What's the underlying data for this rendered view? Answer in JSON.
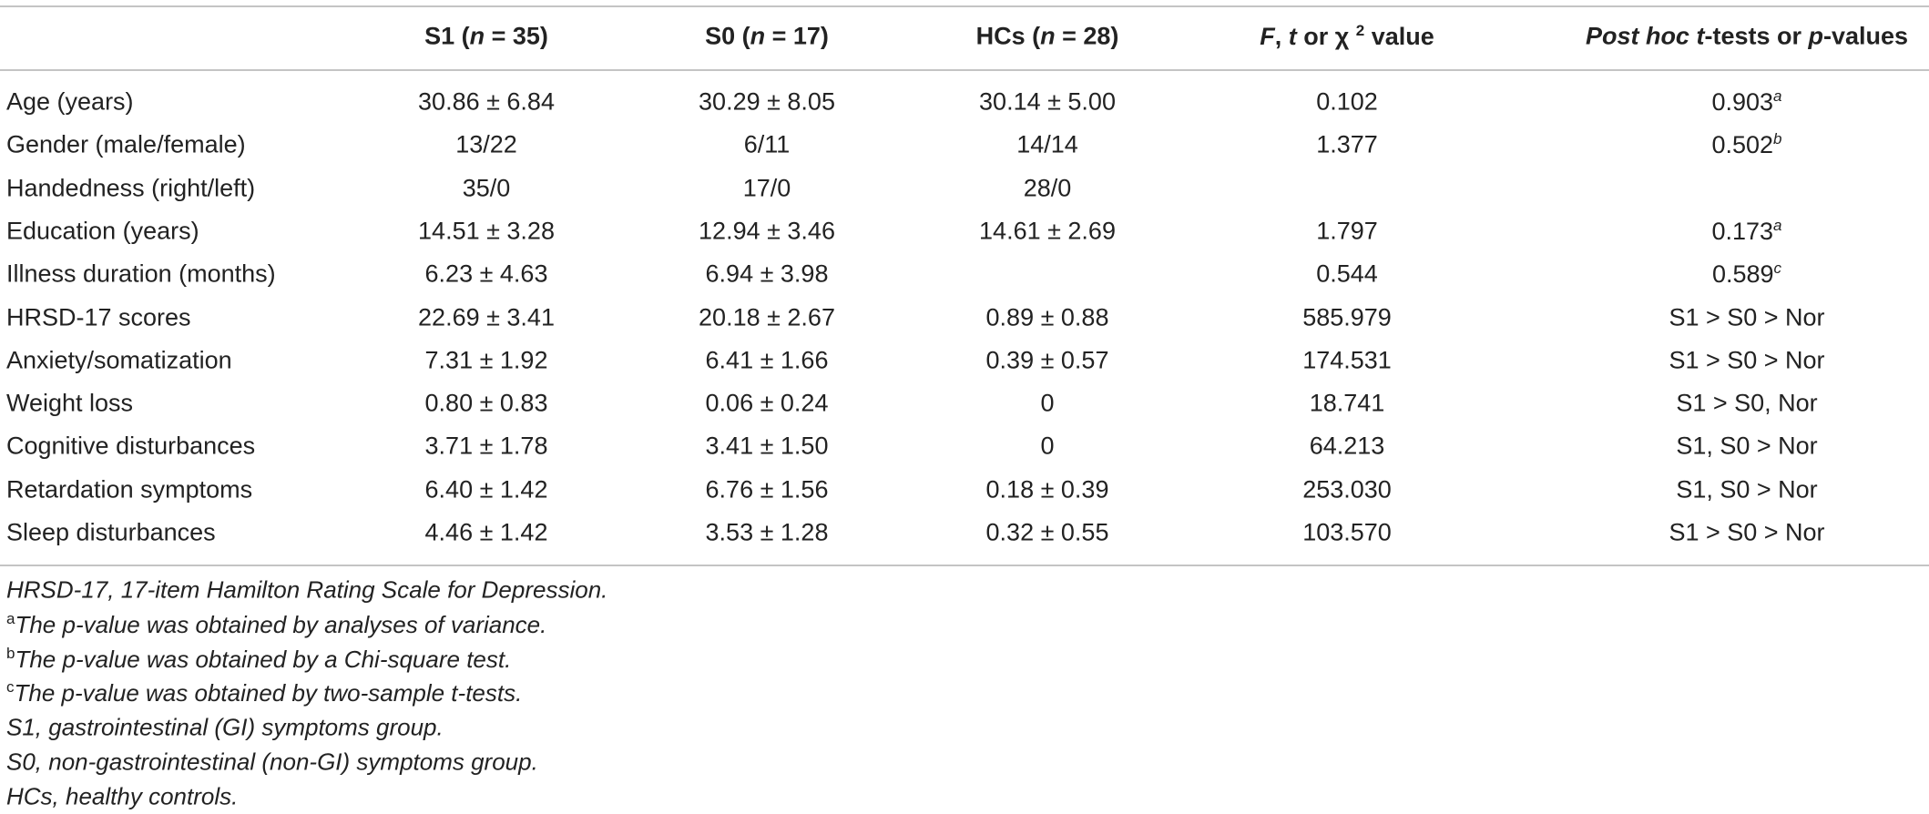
{
  "table": {
    "columns": [
      [
        "S1 (",
        "n",
        " = 35)"
      ],
      [
        "S0 (",
        "n",
        " = 17)"
      ],
      [
        "HCs (",
        "n",
        " = 28)"
      ],
      [
        "F",
        ", ",
        "t",
        " or χ ",
        "2",
        " value"
      ],
      [
        "Post hoc",
        " ",
        "t",
        "-tests or ",
        "p",
        "-values"
      ]
    ],
    "rows": [
      [
        "Age (years)",
        "30.86 ± 6.84",
        "30.29 ± 8.05",
        "30.14 ± 5.00",
        "0.102",
        {
          "text": "0.903",
          "mark": "a"
        }
      ],
      [
        "Gender (male/female)",
        "13/22",
        "6/11",
        "14/14",
        "1.377",
        {
          "text": "0.502",
          "mark": "b"
        }
      ],
      [
        "Handedness (right/left)",
        "35/0",
        "17/0",
        "28/0",
        null,
        null
      ],
      [
        "Education (years)",
        "14.51 ± 3.28",
        "12.94 ± 3.46",
        "14.61 ± 2.69",
        "1.797",
        {
          "text": "0.173",
          "mark": "a"
        }
      ],
      [
        "Illness duration (months)",
        "6.23 ± 4.63",
        "6.94 ± 3.98",
        null,
        "0.544",
        {
          "text": "0.589",
          "mark": "c"
        }
      ],
      [
        "HRSD-17 scores",
        "22.69 ± 3.41",
        "20.18 ± 2.67",
        "0.89 ± 0.88",
        "585.979",
        "S1 > S0 > Nor"
      ],
      [
        "Anxiety/somatization",
        "7.31 ± 1.92",
        "6.41 ± 1.66",
        "0.39 ± 0.57",
        "174.531",
        "S1 > S0 > Nor"
      ],
      [
        "Weight loss",
        "0.80 ± 0.83",
        "0.06 ± 0.24",
        "0",
        "18.741",
        "S1 > S0, Nor"
      ],
      [
        "Cognitive disturbances",
        "3.71 ± 1.78",
        "3.41 ± 1.50",
        "0",
        "64.213",
        "S1, S0 > Nor"
      ],
      [
        "Retardation symptoms",
        "6.40 ± 1.42",
        "6.76 ± 1.56",
        "0.18 ± 0.39",
        "253.030",
        "S1, S0 > Nor"
      ],
      [
        "Sleep disturbances",
        "4.46 ± 1.42",
        "3.53 ± 1.28",
        "0.32 ± 0.55",
        "103.570",
        "S1 > S0 > Nor"
      ]
    ],
    "footnotes": [
      "HRSD-17, 17-item Hamilton Rating Scale for Depression.",
      {
        "mark": "a",
        "text": "The p-value was obtained by analyses of variance."
      },
      {
        "mark": "b",
        "text": "The p-value was obtained by a Chi-square test."
      },
      {
        "mark": "c",
        "text": "The p-value was obtained by two-sample t-tests."
      },
      "S1, gastrointestinal (GI) symptoms group.",
      "S0, non-gastrointestinal (non-GI) symptoms group.",
      "HCs, healthy controls."
    ]
  }
}
